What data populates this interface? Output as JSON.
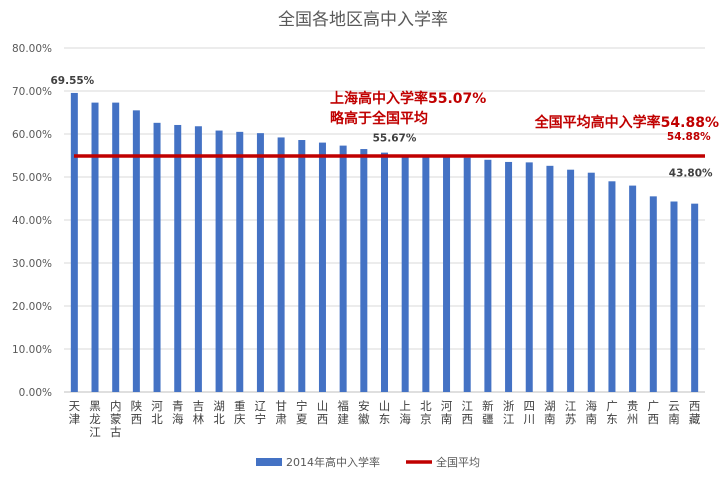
{
  "chart_data": {
    "type": "bar",
    "title": "全国各地区高中入学率",
    "xlabel": "",
    "ylabel": "",
    "ylim": [
      0,
      0.8
    ],
    "y_ticks": [
      0,
      0.1,
      0.2,
      0.3,
      0.4,
      0.5,
      0.6,
      0.7,
      0.8
    ],
    "y_tick_labels": [
      "0.00%",
      "10.00%",
      "20.00%",
      "30.00%",
      "40.00%",
      "50.00%",
      "60.00%",
      "70.00%",
      "80.00%"
    ],
    "grid": true,
    "legend_position": "bottom",
    "categories": [
      "天津",
      "黑龙江",
      "内蒙古",
      "陕西",
      "河北",
      "青海",
      "吉林",
      "湖北",
      "重庆",
      "辽宁",
      "甘肃",
      "宁夏",
      "山西",
      "福建",
      "安徽",
      "山东",
      "上海",
      "北京",
      "河南",
      "江西",
      "新疆",
      "浙江",
      "四川",
      "湖南",
      "江苏",
      "海南",
      "广东",
      "贵州",
      "广西",
      "云南",
      "西藏"
    ],
    "series": [
      {
        "name": "2014年高中入学率",
        "type": "bar",
        "color": "#4472c4",
        "values": [
          0.6955,
          0.673,
          0.673,
          0.655,
          0.626,
          0.621,
          0.618,
          0.608,
          0.605,
          0.602,
          0.592,
          0.586,
          0.58,
          0.573,
          0.565,
          0.5567,
          0.5507,
          0.55,
          0.548,
          0.545,
          0.54,
          0.535,
          0.534,
          0.526,
          0.517,
          0.51,
          0.49,
          0.48,
          0.455,
          0.443,
          0.438
        ]
      },
      {
        "name": "全国平均",
        "type": "line",
        "color": "#c00000",
        "value": 0.5488
      }
    ],
    "data_labels": [
      {
        "category": "天津",
        "text": "69.55%"
      },
      {
        "category": "山东",
        "text": "55.67%"
      },
      {
        "category": "西藏",
        "text": "43.80%"
      },
      {
        "category": "西藏",
        "text": "54.88%",
        "color": "#c00000"
      }
    ],
    "annotations": [
      {
        "lines": [
          "上海高中入学率55.07%",
          "略高于全国平均"
        ],
        "color": "#c00000"
      },
      {
        "lines": [
          "全国平均高中入学率54.88%"
        ],
        "color": "#c00000"
      }
    ]
  }
}
